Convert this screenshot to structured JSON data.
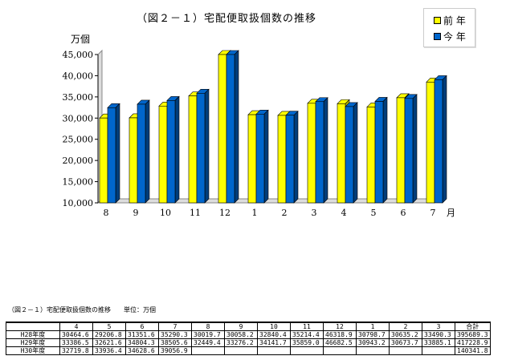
{
  "chart_data": {
    "type": "bar",
    "title": "（図２－１）宅配便取扱個数の推移",
    "ylabel": "万個",
    "xlabel": "月",
    "ylim": [
      10000,
      45000
    ],
    "yticks": [
      "10,000",
      "15,000",
      "20,000",
      "25,000",
      "30,000",
      "35,000",
      "40,000",
      "45,000"
    ],
    "categories": [
      "8",
      "9",
      "10",
      "11",
      "12",
      "1",
      "2",
      "3",
      "4",
      "5",
      "6",
      "7"
    ],
    "series": [
      {
        "name": "前 年",
        "color": "#ffff00",
        "values": [
          30019.7,
          30058.2,
          32840.4,
          35214.4,
          46318.9,
          30798.7,
          30635.2,
          33490.3,
          33386.5,
          32621.6,
          34804.3,
          38505.6
        ]
      },
      {
        "name": "今 年",
        "color": "#0066cc",
        "values": [
          32449.4,
          33276.2,
          34141.7,
          35859.0,
          46682.5,
          30943.2,
          30673.7,
          33885.1,
          32719.8,
          33936.4,
          34628.6,
          39056.9
        ]
      }
    ],
    "legend": "top-right"
  },
  "table": {
    "title": "（図２－１）宅配便取扱個数の推移　　単位：万個",
    "headers": [
      "",
      "4",
      "5",
      "6",
      "7",
      "8",
      "9",
      "10",
      "11",
      "12",
      "1",
      "2",
      "3",
      "合計"
    ],
    "rows": [
      [
        "H28年度",
        "30464.6",
        "29206.8",
        "31351.6",
        "35290.3",
        "30019.7",
        "30058.2",
        "32840.4",
        "35214.4",
        "46318.9",
        "30798.7",
        "30635.2",
        "33490.3",
        "395689.3"
      ],
      [
        "H29年度",
        "33386.5",
        "32621.6",
        "34804.3",
        "38505.6",
        "32449.4",
        "33276.2",
        "34141.7",
        "35859.0",
        "46682.5",
        "30943.2",
        "30673.7",
        "33885.1",
        "417228.9"
      ],
      [
        "H30年度",
        "32719.8",
        "33936.4",
        "34628.6",
        "39056.9",
        "",
        "",
        "",
        "",
        "",
        "",
        "",
        "",
        "140341.8"
      ]
    ]
  }
}
